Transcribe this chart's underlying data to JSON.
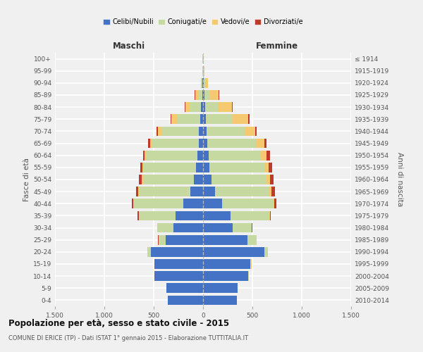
{
  "age_groups": [
    "0-4",
    "5-9",
    "10-14",
    "15-19",
    "20-24",
    "25-29",
    "30-34",
    "35-39",
    "40-44",
    "45-49",
    "50-54",
    "55-59",
    "60-64",
    "65-69",
    "70-74",
    "75-79",
    "80-84",
    "85-89",
    "90-94",
    "95-99",
    "100+"
  ],
  "birth_years": [
    "2010-2014",
    "2005-2009",
    "2000-2004",
    "1995-1999",
    "1990-1994",
    "1985-1989",
    "1980-1984",
    "1975-1979",
    "1970-1974",
    "1965-1969",
    "1960-1964",
    "1955-1959",
    "1950-1954",
    "1945-1949",
    "1940-1944",
    "1935-1939",
    "1930-1934",
    "1925-1929",
    "1920-1924",
    "1915-1919",
    "≤ 1914"
  ],
  "males": {
    "celibi": [
      360,
      370,
      490,
      490,
      530,
      380,
      300,
      280,
      200,
      130,
      90,
      70,
      60,
      45,
      40,
      30,
      20,
      10,
      5,
      3,
      2
    ],
    "coniugati": [
      0,
      0,
      5,
      5,
      30,
      70,
      160,
      370,
      500,
      520,
      520,
      530,
      510,
      470,
      380,
      230,
      110,
      40,
      10,
      4,
      2
    ],
    "vedovi": [
      0,
      0,
      0,
      0,
      2,
      2,
      2,
      3,
      5,
      5,
      10,
      15,
      20,
      20,
      35,
      60,
      50,
      30,
      8,
      2,
      0
    ],
    "divorziati": [
      0,
      0,
      0,
      0,
      2,
      3,
      5,
      10,
      20,
      25,
      30,
      20,
      20,
      20,
      15,
      8,
      8,
      5,
      2,
      0,
      0
    ]
  },
  "females": {
    "nubili": [
      340,
      350,
      460,
      480,
      620,
      450,
      300,
      280,
      190,
      120,
      85,
      65,
      55,
      40,
      35,
      30,
      20,
      15,
      5,
      3,
      2
    ],
    "coniugate": [
      0,
      0,
      5,
      8,
      35,
      90,
      190,
      390,
      520,
      550,
      560,
      560,
      530,
      500,
      390,
      270,
      130,
      55,
      15,
      5,
      2
    ],
    "vedove": [
      0,
      0,
      0,
      2,
      2,
      2,
      3,
      5,
      10,
      20,
      30,
      40,
      60,
      80,
      100,
      160,
      140,
      90,
      30,
      8,
      3
    ],
    "divorziate": [
      0,
      0,
      0,
      0,
      2,
      3,
      5,
      10,
      25,
      35,
      40,
      35,
      30,
      25,
      15,
      8,
      8,
      5,
      2,
      0,
      0
    ]
  },
  "colors": {
    "celibi": "#4472C4",
    "coniugati": "#c5d9a0",
    "vedovi": "#f5c970",
    "divorziati": "#c0392b"
  },
  "legend_labels": [
    "Celibi/Nubili",
    "Coniugati/e",
    "Vedovi/e",
    "Divorziati/e"
  ],
  "xlabel_left": "Maschi",
  "xlabel_right": "Femmine",
  "ylabel_left": "Fasce di età",
  "ylabel_right": "Anni di nascita",
  "title": "Popolazione per età, sesso e stato civile - 2015",
  "subtitle": "COMUNE DI ERICE (TP) - Dati ISTAT 1° gennaio 2015 - Elaborazione TUTTITALIA.IT",
  "xlim": 1500,
  "bg_color": "#f0f0f0",
  "grid_color": "#ffffff"
}
